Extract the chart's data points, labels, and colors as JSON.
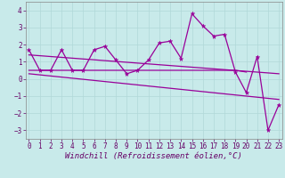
{
  "xlabel": "Windchill (Refroidissement éolien,°C)",
  "bg_color": "#c8eaea",
  "grid_color": "#b0d8d8",
  "line_color": "#990099",
  "x": [
    0,
    1,
    2,
    3,
    4,
    5,
    6,
    7,
    8,
    9,
    10,
    11,
    12,
    13,
    14,
    15,
    16,
    17,
    18,
    19,
    20,
    21,
    22,
    23
  ],
  "line1": [
    1.7,
    0.5,
    0.5,
    1.7,
    0.5,
    0.5,
    1.7,
    1.9,
    1.1,
    0.3,
    0.5,
    1.1,
    2.1,
    2.2,
    1.2,
    3.8,
    3.1,
    2.5,
    2.6,
    0.4,
    -0.8,
    1.3,
    -3.0,
    -1.5
  ],
  "line2_x": [
    0,
    1,
    2,
    3,
    4,
    5,
    6,
    7,
    8,
    9,
    10,
    11,
    12,
    13,
    14,
    15,
    16,
    17,
    18,
    19,
    20
  ],
  "line2_y": [
    0.5,
    0.5,
    0.5,
    0.5,
    0.5,
    0.5,
    0.5,
    0.5,
    0.5,
    0.5,
    0.5,
    0.5,
    0.5,
    0.5,
    0.5,
    0.5,
    0.5,
    0.5,
    0.5,
    0.5,
    0.4
  ],
  "trend1_x": [
    0,
    23
  ],
  "trend1_y": [
    1.4,
    0.3
  ],
  "trend2_x": [
    0,
    23
  ],
  "trend2_y": [
    0.3,
    -1.2
  ],
  "ylim": [
    -3.5,
    4.5
  ],
  "xlim": [
    -0.3,
    23.3
  ],
  "yticks": [
    -3,
    -2,
    -1,
    0,
    1,
    2,
    3,
    4
  ],
  "xticks": [
    0,
    1,
    2,
    3,
    4,
    5,
    6,
    7,
    8,
    9,
    10,
    11,
    12,
    13,
    14,
    15,
    16,
    17,
    18,
    19,
    20,
    21,
    22,
    23
  ],
  "tick_fontsize": 5.5,
  "xlabel_fontsize": 6.5,
  "markersize": 2.5,
  "linewidth": 0.9
}
